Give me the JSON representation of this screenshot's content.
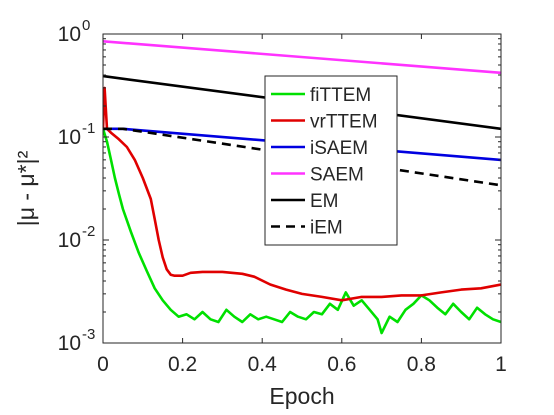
{
  "chart_data": {
    "type": "line",
    "xlabel": "Epoch",
    "ylabel": "|μ - μ*|²",
    "xlim": [
      0,
      1
    ],
    "ylim": [
      0.001,
      1
    ],
    "yscale": "log",
    "grid": false,
    "legend_position": "top-right",
    "x_ticks": [
      {
        "value": 0,
        "label": "0"
      },
      {
        "value": 0.2,
        "label": "0.2"
      },
      {
        "value": 0.4,
        "label": "0.4"
      },
      {
        "value": 0.6,
        "label": "0.6"
      },
      {
        "value": 0.8,
        "label": "0.8"
      },
      {
        "value": 1,
        "label": "1"
      }
    ],
    "y_ticks": [
      {
        "value": 1,
        "base": "10",
        "exp": "0"
      },
      {
        "value": 0.1,
        "base": "10",
        "exp": "-1"
      },
      {
        "value": 0.01,
        "base": "10",
        "exp": "-2"
      },
      {
        "value": 0.001,
        "base": "10",
        "exp": "-3"
      }
    ],
    "series": [
      {
        "name": "fiTTEM",
        "color": "#00e000",
        "dash": "solid",
        "x": [
          0,
          0.01,
          0.02,
          0.03,
          0.04,
          0.05,
          0.07,
          0.09,
          0.11,
          0.13,
          0.15,
          0.17,
          0.19,
          0.21,
          0.23,
          0.25,
          0.27,
          0.29,
          0.31,
          0.33,
          0.35,
          0.37,
          0.39,
          0.41,
          0.43,
          0.45,
          0.47,
          0.49,
          0.51,
          0.53,
          0.55,
          0.57,
          0.59,
          0.61,
          0.63,
          0.65,
          0.67,
          0.69,
          0.7,
          0.72,
          0.74,
          0.76,
          0.78,
          0.8,
          0.82,
          0.84,
          0.86,
          0.88,
          0.9,
          0.92,
          0.94,
          0.96,
          0.98,
          1.0
        ],
        "y": [
          0.12,
          0.09,
          0.06,
          0.04,
          0.028,
          0.02,
          0.012,
          0.0075,
          0.005,
          0.0034,
          0.0026,
          0.0021,
          0.0018,
          0.0019,
          0.0017,
          0.002,
          0.0017,
          0.0016,
          0.0021,
          0.0018,
          0.0016,
          0.0019,
          0.0017,
          0.0018,
          0.0017,
          0.0016,
          0.002,
          0.0018,
          0.0017,
          0.002,
          0.0019,
          0.0024,
          0.0021,
          0.0031,
          0.0023,
          0.0026,
          0.0021,
          0.0017,
          0.00125,
          0.0018,
          0.0016,
          0.0021,
          0.0024,
          0.0029,
          0.0026,
          0.0022,
          0.0019,
          0.0024,
          0.002,
          0.0017,
          0.0022,
          0.0019,
          0.0017,
          0.0016
        ]
      },
      {
        "name": "vrTTEM",
        "color": "#e00000",
        "dash": "solid",
        "x": [
          0,
          0.004,
          0.01,
          0.02,
          0.04,
          0.06,
          0.08,
          0.1,
          0.12,
          0.13,
          0.14,
          0.15,
          0.16,
          0.17,
          0.18,
          0.2,
          0.22,
          0.25,
          0.3,
          0.35,
          0.38,
          0.42,
          0.46,
          0.5,
          0.55,
          0.6,
          0.65,
          0.7,
          0.75,
          0.8,
          0.85,
          0.9,
          0.95,
          1.0
        ],
        "y": [
          0.12,
          0.3,
          0.12,
          0.11,
          0.095,
          0.08,
          0.06,
          0.04,
          0.025,
          0.016,
          0.01,
          0.0068,
          0.0052,
          0.0046,
          0.0045,
          0.0045,
          0.0048,
          0.0049,
          0.0049,
          0.0047,
          0.0044,
          0.0037,
          0.0033,
          0.003,
          0.0028,
          0.0026,
          0.0028,
          0.0028,
          0.0029,
          0.0029,
          0.0031,
          0.0033,
          0.0034,
          0.0037
        ]
      },
      {
        "name": "iSAEM",
        "color": "#0000e0",
        "dash": "solid",
        "x": [
          0,
          0.05,
          1
        ],
        "y": [
          0.12,
          0.12,
          0.06
        ]
      },
      {
        "name": "SAEM",
        "color": "#ff33ff",
        "dash": "solid",
        "x": [
          0,
          1
        ],
        "y": [
          0.85,
          0.42
        ]
      },
      {
        "name": "EM",
        "color": "#000000",
        "dash": "solid",
        "x": [
          0,
          1
        ],
        "y": [
          0.39,
          0.12
        ]
      },
      {
        "name": "iEM",
        "color": "#000000",
        "dash": "dashed",
        "x": [
          0,
          0.05,
          1
        ],
        "y": [
          0.12,
          0.12,
          0.034
        ]
      }
    ]
  }
}
